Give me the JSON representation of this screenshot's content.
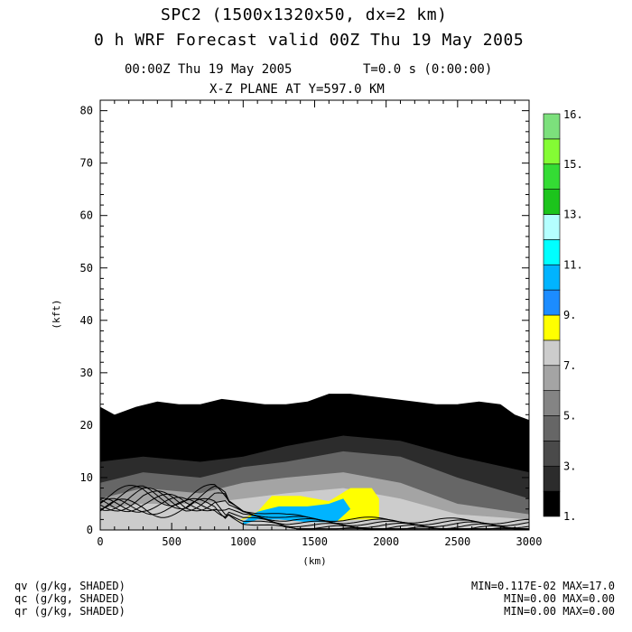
{
  "header": {
    "title_line1": "SPC2 (1500x1320x50, dx=2 km)",
    "title_line2": "0 h WRF Forecast valid 00Z Thu 19 May 2005",
    "time_label": "00:00Z Thu 19 May 2005",
    "elapsed_label": "T=0.0 s (0:00:00)",
    "plane_label": "X-Z PLANE AT Y=597.0 KM"
  },
  "footer": {
    "fields": [
      "qv (g/kg, SHADED)",
      "qc (g/kg, SHADED)",
      "qr (g/kg, SHADED)"
    ],
    "ranges": [
      "MIN=0.117E-02 MAX=17.0",
      "MIN=0.00 MAX=0.00",
      "MIN=0.00 MAX=0.00"
    ]
  },
  "chart_data": {
    "type": "heatmap",
    "xlabel": "(km)",
    "ylabel": "(kft)",
    "xlim": [
      0,
      3000
    ],
    "ylim": [
      0,
      82
    ],
    "x_ticks": [
      0,
      500,
      1000,
      1500,
      2000,
      2500,
      3000
    ],
    "y_ticks": [
      0,
      10,
      20,
      30,
      40,
      50,
      60,
      70,
      80
    ],
    "colorbar": {
      "labels": [
        "1.",
        "3.",
        "5.",
        "7.",
        "9.",
        "11.",
        "13.",
        "15.",
        "16."
      ],
      "colors": [
        "#000000",
        "#2c2c2c",
        "#4a4a4a",
        "#666666",
        "#848484",
        "#a4a4a4",
        "#cccccc",
        "#ffff00",
        "#1c8cff",
        "#00b4ff",
        "#00ffff",
        "#b4ffff",
        "#1cc41c",
        "#34dc34",
        "#84fc34",
        "#7ce07c"
      ]
    },
    "fields": [
      {
        "name": "qv (g/kg, SHADED)",
        "min": 0.00117,
        "max": 17.0
      },
      {
        "name": "qc (g/kg, SHADED)",
        "min": 0.0,
        "max": 0.0
      },
      {
        "name": "qr (g/kg, SHADED)",
        "min": 0.0,
        "max": 0.0
      }
    ],
    "qv_top_boundary": {
      "x": [
        0,
        100,
        250,
        400,
        550,
        700,
        850,
        1000,
        1150,
        1300,
        1450,
        1600,
        1750,
        1900,
        2050,
        2200,
        2350,
        2500,
        2650,
        2800,
        2900,
        3000
      ],
      "height": [
        23.5,
        22,
        23.5,
        24.5,
        24,
        24,
        25,
        24.5,
        24,
        24,
        24.5,
        26,
        26,
        25.5,
        25,
        24.5,
        24,
        24,
        24.5,
        24,
        22,
        21
      ]
    },
    "shading_levels": [
      {
        "level": 1,
        "color": "#000000",
        "x": [
          0,
          300,
          700,
          1000,
          1300,
          1700,
          2100,
          2500,
          3000
        ],
        "height": [
          20,
          19,
          20,
          21,
          21,
          23,
          22,
          20,
          19
        ]
      },
      {
        "level": 3,
        "color": "#2c2c2c",
        "x": [
          0,
          300,
          700,
          1000,
          1300,
          1700,
          2100,
          2500,
          3000
        ],
        "height": [
          13,
          14,
          13,
          14,
          16,
          18,
          17,
          14,
          11
        ]
      },
      {
        "level": 5,
        "color": "#666666",
        "x": [
          0,
          300,
          700,
          1000,
          1300,
          1700,
          2100,
          2500,
          3000
        ],
        "height": [
          9,
          11,
          10,
          12,
          13,
          15,
          14,
          10,
          6
        ]
      },
      {
        "level": 6,
        "color": "#a4a4a4",
        "x": [
          0,
          300,
          700,
          1000,
          1300,
          1700,
          2100,
          2500,
          3000
        ],
        "height": [
          6,
          8,
          7,
          9,
          10,
          11,
          9,
          5,
          3
        ]
      },
      {
        "level": 7,
        "color": "#cccccc",
        "x": [
          0,
          300,
          700,
          1000,
          1300,
          1700,
          2100,
          2500,
          3000
        ],
        "height": [
          4,
          5,
          5,
          6,
          7,
          8,
          6,
          3,
          2
        ]
      }
    ]
  }
}
